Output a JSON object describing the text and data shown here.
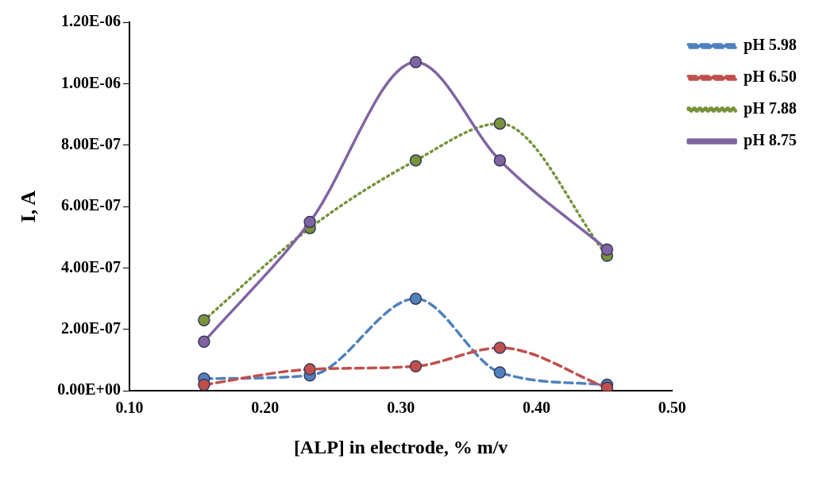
{
  "chart_data": {
    "type": "line",
    "xlabel": "[ALP] in electrode, % m/v",
    "ylabel": "I, A",
    "x": [
      0.155,
      0.233,
      0.311,
      0.373,
      0.452
    ],
    "series": [
      {
        "name": "pH 5.98",
        "color": "#4f81bd",
        "line_style": "dashed",
        "values": [
          4e-08,
          5e-08,
          3e-07,
          6e-08,
          2e-08
        ]
      },
      {
        "name": "pH 6.50",
        "color": "#c0504d",
        "line_style": "dashed",
        "values": [
          2e-08,
          7e-08,
          8e-08,
          1.4e-07,
          1e-08
        ]
      },
      {
        "name": "pH 7.88",
        "color": "#77933c",
        "line_style": "dotted",
        "values": [
          2.3e-07,
          5.3e-07,
          7.5e-07,
          8.7e-07,
          4.4e-07
        ]
      },
      {
        "name": "pH 8.75",
        "color": "#8064a2",
        "line_style": "solid",
        "values": [
          1.6e-07,
          5.5e-07,
          1.07e-06,
          7.5e-07,
          4.6e-07
        ]
      }
    ],
    "xlim": [
      0.1,
      0.5
    ],
    "xticks": [
      {
        "value": 0.1,
        "label": "0.10"
      },
      {
        "value": 0.2,
        "label": "0.20"
      },
      {
        "value": 0.3,
        "label": "0.30"
      },
      {
        "value": 0.4,
        "label": "0.40"
      },
      {
        "value": 0.5,
        "label": "0.50"
      }
    ],
    "ylim": [
      0,
      1.2e-06
    ],
    "yticks": [
      {
        "value": 0,
        "label": "0.00E+00"
      },
      {
        "value": 2e-07,
        "label": "2.00E-07"
      },
      {
        "value": 4e-07,
        "label": "4.00E-07"
      },
      {
        "value": 6e-07,
        "label": "6.00E-07"
      },
      {
        "value": 8e-07,
        "label": "8.00E-07"
      },
      {
        "value": 1e-06,
        "label": "1.00E-06"
      },
      {
        "value": 1.2e-06,
        "label": "1.20E-06"
      }
    ],
    "grid": false,
    "legend": "right",
    "marker": "circle"
  }
}
